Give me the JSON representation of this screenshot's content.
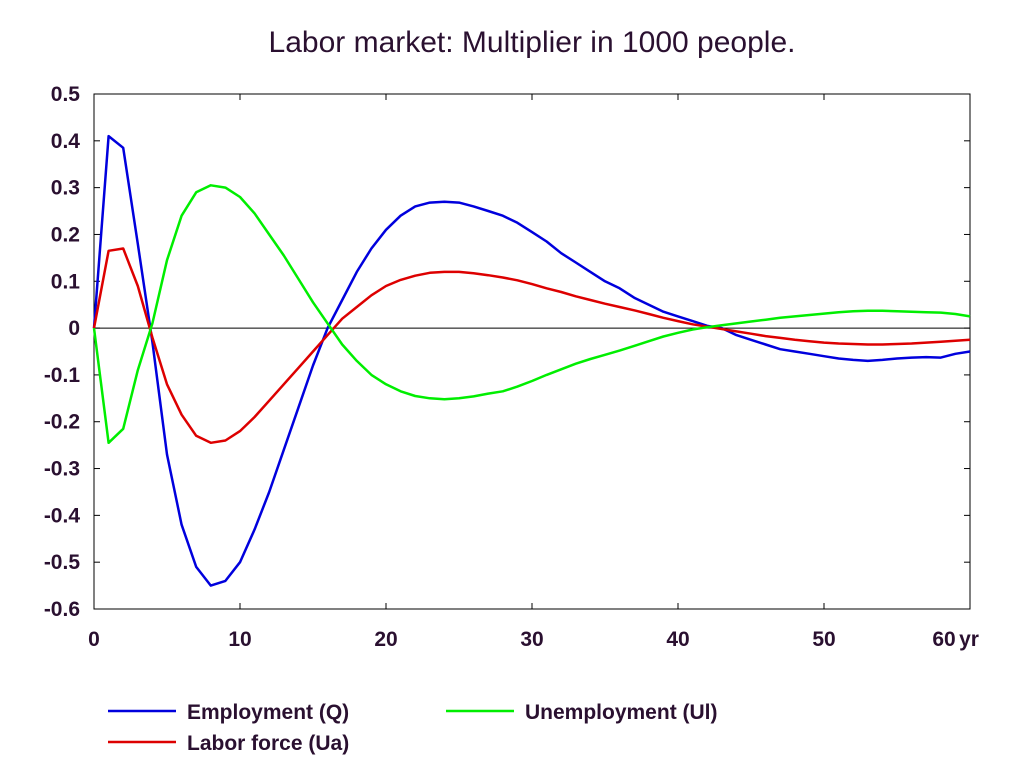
{
  "chart_data": {
    "type": "line",
    "title": "Labor market: Multiplier in 1000 people.",
    "xlabel": "",
    "ylabel": "",
    "x_unit_label": "yr",
    "xlim": [
      0,
      60
    ],
    "ylim": [
      -0.6,
      0.5
    ],
    "x_ticks": [
      0,
      10,
      20,
      30,
      40,
      50,
      60
    ],
    "x_tick_labels": [
      "0",
      "10",
      "20",
      "30",
      "40",
      "50",
      "60"
    ],
    "y_ticks": [
      0.5,
      0.4,
      0.3,
      0.2,
      0.1,
      0,
      -0.1,
      -0.2,
      -0.3,
      -0.4,
      -0.5,
      -0.6
    ],
    "y_tick_labels": [
      "0.5",
      "0.4",
      "0.3",
      "0.2",
      "0.1",
      "0",
      "-0.1",
      "-0.2",
      "-0.3",
      "-0.4",
      "-0.5",
      "-0.6"
    ],
    "grid": false,
    "zero_line": true,
    "legend_position": "bottom",
    "series": [
      {
        "name": "Employment (Q)",
        "color": "#0000dd",
        "points": [
          [
            0,
            0
          ],
          [
            1,
            0.41
          ],
          [
            2,
            0.385
          ],
          [
            3,
            0.18
          ],
          [
            4,
            -0.03
          ],
          [
            5,
            -0.27
          ],
          [
            6,
            -0.42
          ],
          [
            7,
            -0.51
          ],
          [
            8,
            -0.55
          ],
          [
            9,
            -0.54
          ],
          [
            10,
            -0.5
          ],
          [
            11,
            -0.43
          ],
          [
            12,
            -0.35
          ],
          [
            13,
            -0.26
          ],
          [
            14,
            -0.17
          ],
          [
            15,
            -0.08
          ],
          [
            16,
            0
          ],
          [
            17,
            0.06
          ],
          [
            18,
            0.12
          ],
          [
            19,
            0.17
          ],
          [
            20,
            0.21
          ],
          [
            21,
            0.24
          ],
          [
            22,
            0.26
          ],
          [
            23,
            0.268
          ],
          [
            24,
            0.27
          ],
          [
            25,
            0.268
          ],
          [
            26,
            0.26
          ],
          [
            27,
            0.25
          ],
          [
            28,
            0.24
          ],
          [
            29,
            0.225
          ],
          [
            30,
            0.205
          ],
          [
            31,
            0.185
          ],
          [
            32,
            0.16
          ],
          [
            33,
            0.14
          ],
          [
            34,
            0.12
          ],
          [
            35,
            0.1
          ],
          [
            36,
            0.085
          ],
          [
            37,
            0.065
          ],
          [
            38,
            0.05
          ],
          [
            39,
            0.035
          ],
          [
            40,
            0.025
          ],
          [
            41,
            0.015
          ],
          [
            42,
            0.005
          ],
          [
            43,
            0
          ],
          [
            44,
            -0.015
          ],
          [
            45,
            -0.025
          ],
          [
            46,
            -0.035
          ],
          [
            47,
            -0.045
          ],
          [
            48,
            -0.05
          ],
          [
            49,
            -0.055
          ],
          [
            50,
            -0.06
          ],
          [
            51,
            -0.065
          ],
          [
            52,
            -0.068
          ],
          [
            53,
            -0.07
          ],
          [
            54,
            -0.068
          ],
          [
            55,
            -0.065
          ],
          [
            56,
            -0.063
          ],
          [
            57,
            -0.062
          ],
          [
            58,
            -0.063
          ],
          [
            59,
            -0.055
          ],
          [
            60,
            -0.05
          ]
        ]
      },
      {
        "name": "Labor force (Ua)",
        "color": "#dd0000",
        "points": [
          [
            0,
            0
          ],
          [
            1,
            0.165
          ],
          [
            2,
            0.17
          ],
          [
            3,
            0.09
          ],
          [
            4,
            -0.02
          ],
          [
            5,
            -0.12
          ],
          [
            6,
            -0.185
          ],
          [
            7,
            -0.23
          ],
          [
            8,
            -0.245
          ],
          [
            9,
            -0.24
          ],
          [
            10,
            -0.22
          ],
          [
            11,
            -0.19
          ],
          [
            12,
            -0.155
          ],
          [
            13,
            -0.12
          ],
          [
            14,
            -0.085
          ],
          [
            15,
            -0.05
          ],
          [
            16,
            -0.015
          ],
          [
            17,
            0.02
          ],
          [
            18,
            0.045
          ],
          [
            19,
            0.07
          ],
          [
            20,
            0.09
          ],
          [
            21,
            0.103
          ],
          [
            22,
            0.112
          ],
          [
            23,
            0.118
          ],
          [
            24,
            0.12
          ],
          [
            25,
            0.12
          ],
          [
            26,
            0.117
          ],
          [
            27,
            0.113
          ],
          [
            28,
            0.108
          ],
          [
            29,
            0.102
          ],
          [
            30,
            0.094
          ],
          [
            31,
            0.085
          ],
          [
            32,
            0.077
          ],
          [
            33,
            0.068
          ],
          [
            34,
            0.06
          ],
          [
            35,
            0.052
          ],
          [
            36,
            0.045
          ],
          [
            37,
            0.038
          ],
          [
            38,
            0.03
          ],
          [
            39,
            0.022
          ],
          [
            40,
            0.015
          ],
          [
            41,
            0.008
          ],
          [
            42,
            0.003
          ],
          [
            43,
            -0.002
          ],
          [
            44,
            -0.007
          ],
          [
            45,
            -0.012
          ],
          [
            46,
            -0.017
          ],
          [
            47,
            -0.021
          ],
          [
            48,
            -0.025
          ],
          [
            49,
            -0.028
          ],
          [
            50,
            -0.031
          ],
          [
            51,
            -0.033
          ],
          [
            52,
            -0.034
          ],
          [
            53,
            -0.035
          ],
          [
            54,
            -0.035
          ],
          [
            55,
            -0.034
          ],
          [
            56,
            -0.033
          ],
          [
            57,
            -0.031
          ],
          [
            58,
            -0.029
          ],
          [
            59,
            -0.027
          ],
          [
            60,
            -0.025
          ]
        ]
      },
      {
        "name": "Unemployment (Ul)",
        "color": "#00ee00",
        "points": [
          [
            0,
            0
          ],
          [
            1,
            -0.245
          ],
          [
            2,
            -0.215
          ],
          [
            3,
            -0.09
          ],
          [
            4,
            0.01
          ],
          [
            5,
            0.145
          ],
          [
            6,
            0.24
          ],
          [
            7,
            0.29
          ],
          [
            8,
            0.305
          ],
          [
            9,
            0.3
          ],
          [
            10,
            0.28
          ],
          [
            11,
            0.245
          ],
          [
            12,
            0.2
          ],
          [
            13,
            0.155
          ],
          [
            14,
            0.105
          ],
          [
            15,
            0.055
          ],
          [
            16,
            0.01
          ],
          [
            17,
            -0.035
          ],
          [
            18,
            -0.07
          ],
          [
            19,
            -0.1
          ],
          [
            20,
            -0.12
          ],
          [
            21,
            -0.135
          ],
          [
            22,
            -0.145
          ],
          [
            23,
            -0.15
          ],
          [
            24,
            -0.152
          ],
          [
            25,
            -0.15
          ],
          [
            26,
            -0.146
          ],
          [
            27,
            -0.14
          ],
          [
            28,
            -0.135
          ],
          [
            29,
            -0.125
          ],
          [
            30,
            -0.113
          ],
          [
            31,
            -0.1
          ],
          [
            32,
            -0.088
          ],
          [
            33,
            -0.076
          ],
          [
            34,
            -0.066
          ],
          [
            35,
            -0.057
          ],
          [
            36,
            -0.048
          ],
          [
            37,
            -0.038
          ],
          [
            38,
            -0.028
          ],
          [
            39,
            -0.018
          ],
          [
            40,
            -0.01
          ],
          [
            41,
            -0.003
          ],
          [
            42,
            0.002
          ],
          [
            43,
            0.006
          ],
          [
            44,
            0.01
          ],
          [
            45,
            0.014
          ],
          [
            46,
            0.018
          ],
          [
            47,
            0.022
          ],
          [
            48,
            0.025
          ],
          [
            49,
            0.028
          ],
          [
            50,
            0.031
          ],
          [
            51,
            0.034
          ],
          [
            52,
            0.036
          ],
          [
            53,
            0.037
          ],
          [
            54,
            0.037
          ],
          [
            55,
            0.036
          ],
          [
            56,
            0.035
          ],
          [
            57,
            0.034
          ],
          [
            58,
            0.033
          ],
          [
            59,
            0.03
          ],
          [
            60,
            0.025
          ]
        ]
      }
    ]
  }
}
